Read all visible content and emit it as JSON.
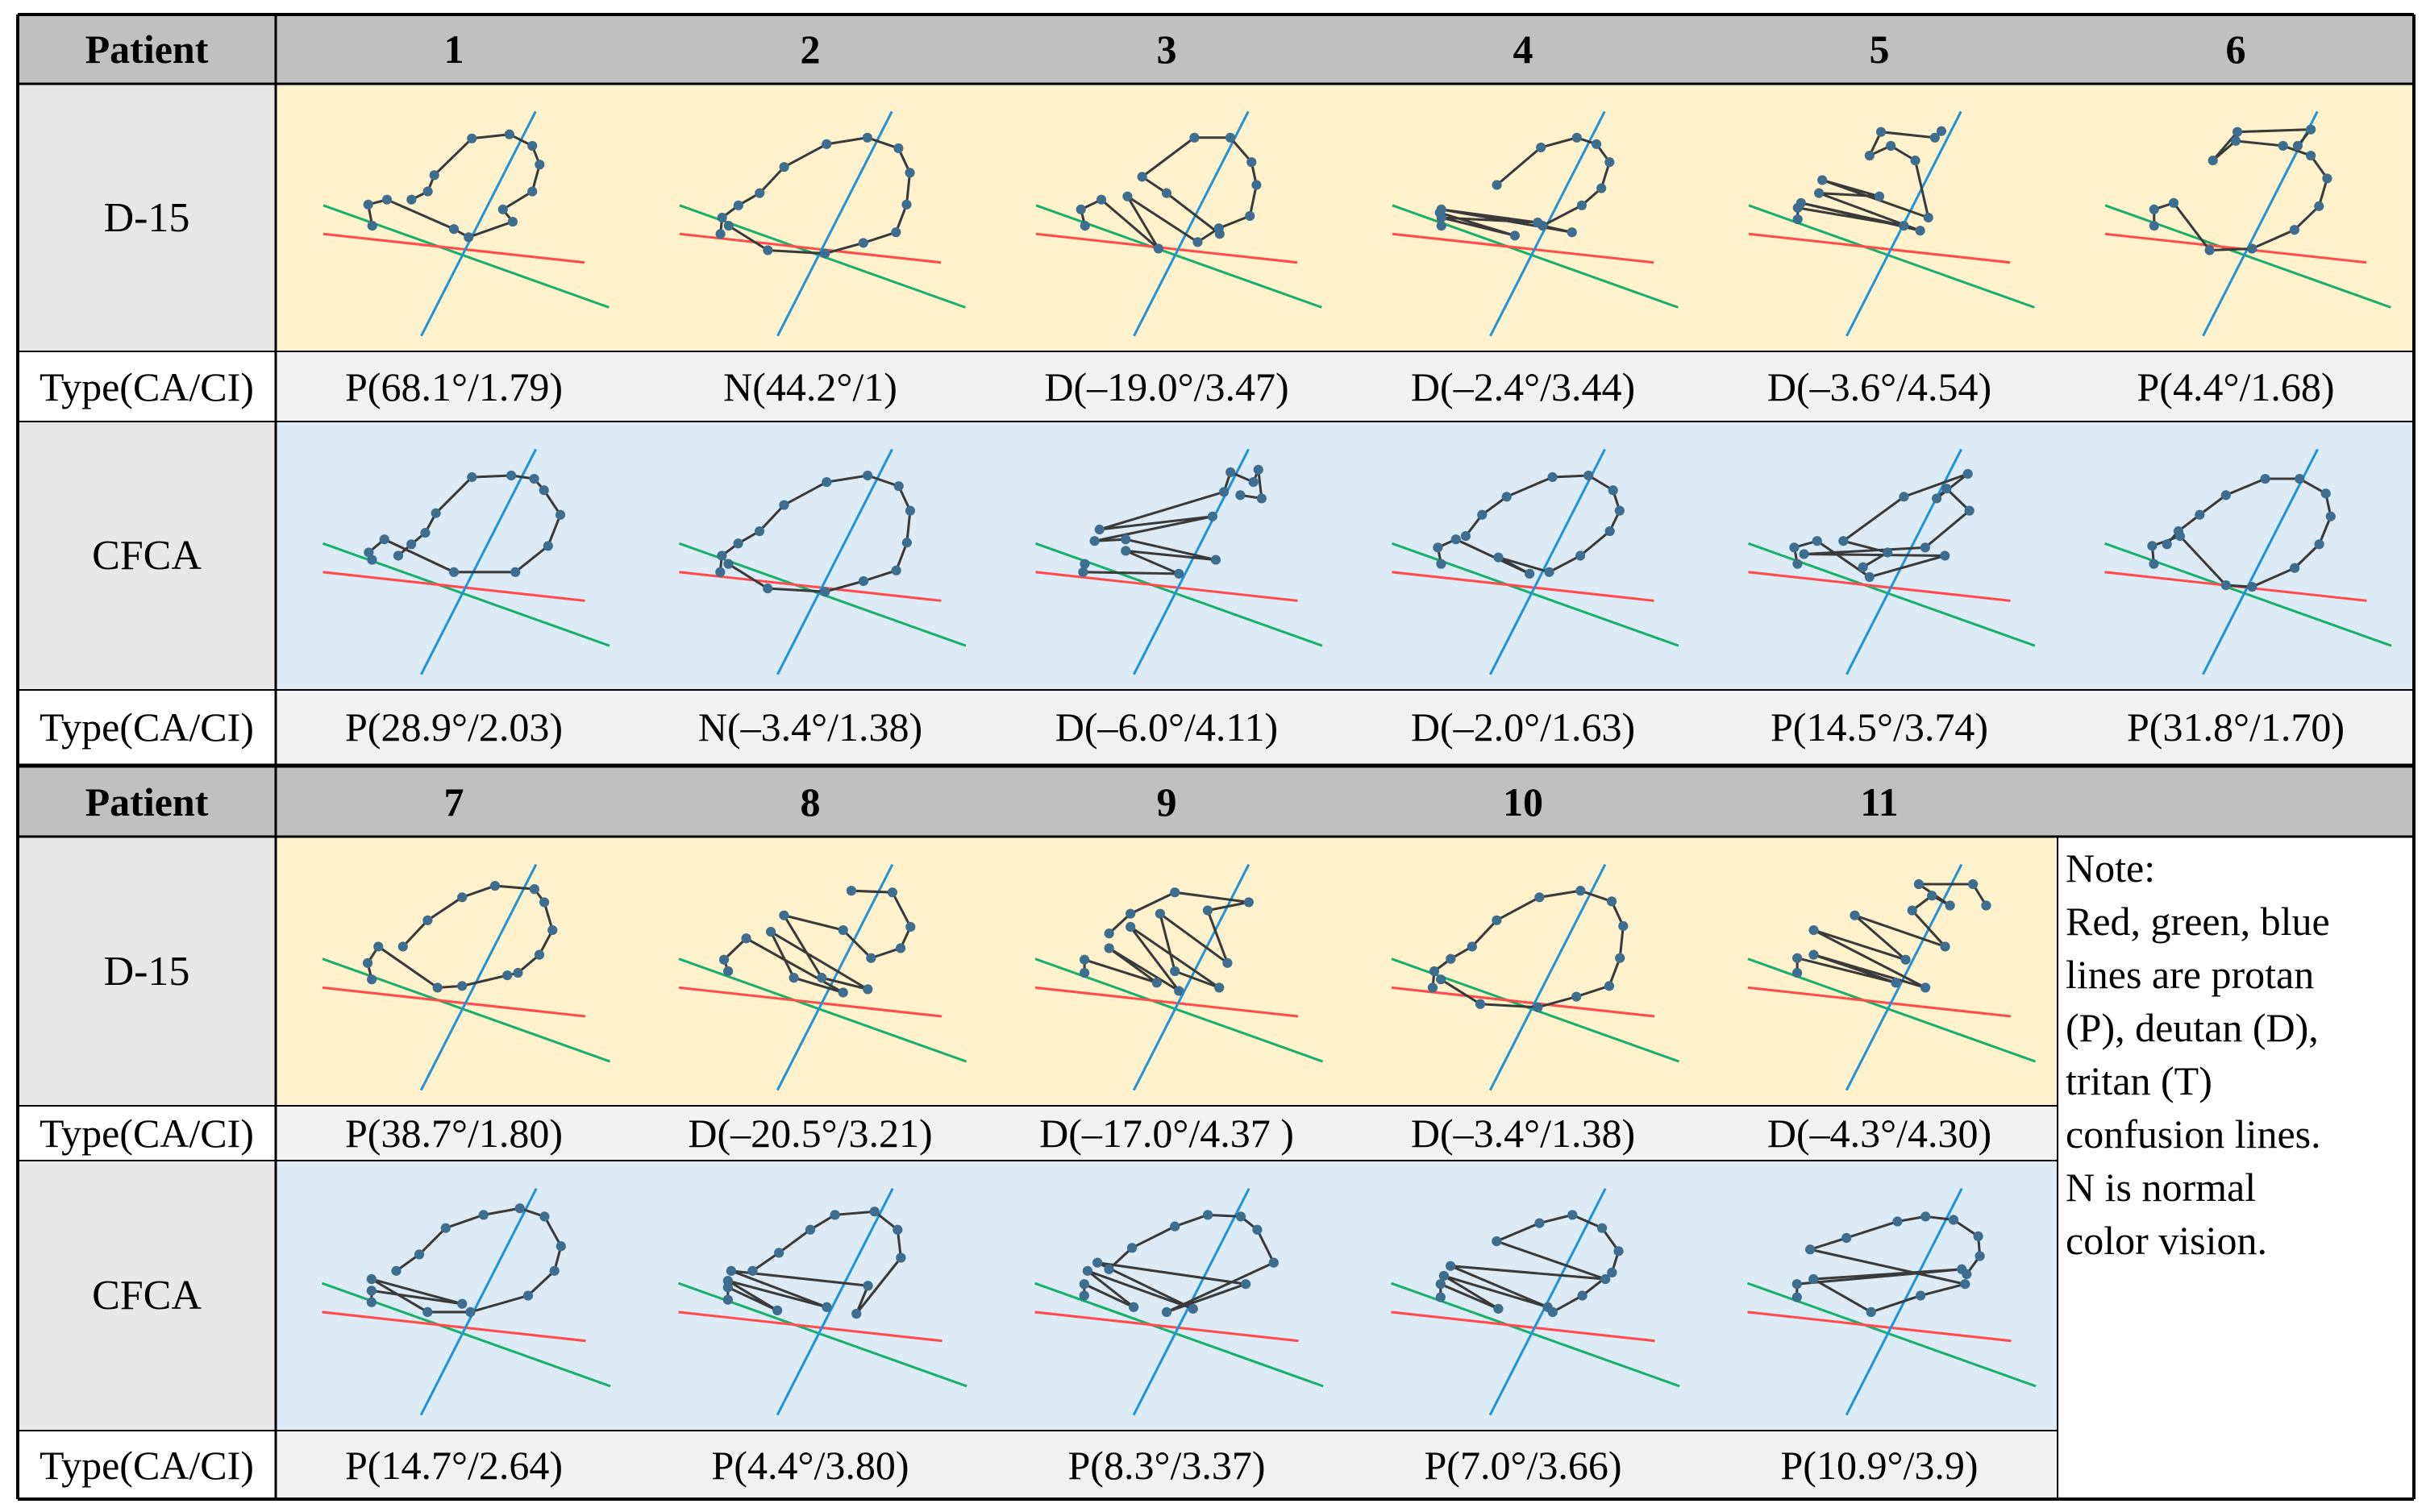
{
  "colors": {
    "header_bg": "#c0c0c0",
    "d15_bg": "#fff2cc",
    "cfca_bg": "#ddebf7",
    "protan_line": "#ff4b4b",
    "deutan_line": "#18b06a",
    "tritan_line": "#2294d6",
    "path": "#3a3a3a",
    "dot": "#3d6e8f"
  },
  "sections": [
    {
      "header_label": "Patient",
      "patients": [
        "1",
        "2",
        "3",
        "4",
        "5",
        "6"
      ],
      "d15_label": "D-15",
      "cfca_label": "CFCA",
      "type_label": "Type(CA/CI)",
      "d15_types": [
        "P(68.1°/1.79)",
        "N(44.2°/1)",
        "D(–19.0°/3.47)",
        "D(–2.4°/3.44)",
        "D(–3.6°/4.54)",
        "P(4.4°/1.68)"
      ],
      "cfca_types": [
        "P(28.9°/2.03)",
        "N(–3.4°/1.38)",
        "D(–6.0°/4.11)",
        "D(–2.0°/1.63)",
        "P(14.5°/3.74)",
        "P(31.8°/1.70)"
      ]
    },
    {
      "header_label": "Patient",
      "patients": [
        "7",
        "8",
        "9",
        "10",
        "11"
      ],
      "d15_label": "D-15",
      "cfca_label": "CFCA",
      "type_label": "Type(CA/CI)",
      "d15_types": [
        "P(38.7°/1.80)",
        "D(–20.5°/3.21)",
        "D(–17.0°/4.37 )",
        "D(–3.4°/1.38)",
        "D(–4.3°/4.30)"
      ],
      "cfca_types": [
        "P(14.7°/2.64)",
        "P(4.4°/3.80)",
        "P(8.3°/3.37)",
        "P(7.0°/3.66)",
        "P(10.9°/3.9)"
      ]
    }
  ],
  "note": {
    "title": "Note:",
    "lines": [
      "Red, green, blue",
      "lines are protan",
      "(P), deutan (D),",
      "tritan (T)",
      "confusion lines.",
      "N is normal",
      "color vision."
    ]
  }
}
